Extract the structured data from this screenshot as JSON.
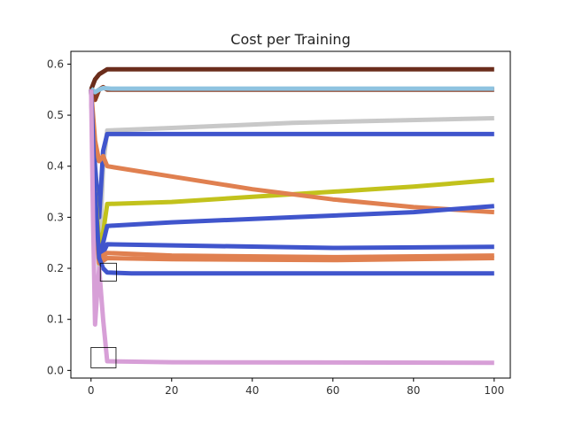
{
  "chart_data": {
    "type": "line",
    "title": "Cost per Training",
    "xlabel": "",
    "ylabel": "",
    "xlim": [
      -5,
      104
    ],
    "ylim": [
      -0.015,
      0.625
    ],
    "xticks": [
      0,
      20,
      40,
      60,
      80,
      100
    ],
    "yticks": [
      0.0,
      0.1,
      0.2,
      0.3,
      0.4,
      0.5,
      0.6
    ],
    "xtick_labels": [
      "0",
      "20",
      "40",
      "60",
      "80",
      "100"
    ],
    "ytick_labels": [
      "0.0",
      "0.1",
      "0.2",
      "0.3",
      "0.4",
      "0.5",
      "0.6"
    ],
    "grid": false,
    "legend": "none",
    "series": [
      {
        "color": "#6b2d1c",
        "x": [
          0,
          1,
          2,
          3,
          4,
          100
        ],
        "y": [
          0.55,
          0.57,
          0.58,
          0.585,
          0.59,
          0.59
        ]
      },
      {
        "color": "#8b3a1e",
        "x": [
          0,
          1,
          2,
          3,
          4,
          100
        ],
        "y": [
          0.55,
          0.53,
          0.55,
          0.555,
          0.55,
          0.55
        ]
      },
      {
        "color": "#8ec3e0",
        "x": [
          0,
          1,
          2,
          3,
          5,
          20,
          100
        ],
        "y": [
          0.552,
          0.545,
          0.55,
          0.553,
          0.552,
          0.552,
          0.552
        ]
      },
      {
        "color": "#c8c8c8",
        "x": [
          0,
          1,
          2,
          3,
          4,
          20,
          50,
          100
        ],
        "y": [
          0.55,
          0.3,
          0.2,
          0.4,
          0.47,
          0.475,
          0.485,
          0.494
        ]
      },
      {
        "color": "#4055cc",
        "x": [
          0,
          1,
          2,
          3,
          4,
          100
        ],
        "y": [
          0.55,
          0.4,
          0.3,
          0.43,
          0.463,
          0.463
        ]
      },
      {
        "color": "#c2c21c",
        "x": [
          0,
          1,
          2,
          3,
          4,
          20,
          50,
          80,
          100
        ],
        "y": [
          0.55,
          0.35,
          0.25,
          0.27,
          0.326,
          0.33,
          0.345,
          0.36,
          0.373
        ]
      },
      {
        "color": "#e08050",
        "x": [
          0,
          1,
          2,
          3,
          4,
          20,
          40,
          60,
          80,
          100
        ],
        "y": [
          0.55,
          0.45,
          0.41,
          0.42,
          0.4,
          0.38,
          0.355,
          0.335,
          0.32,
          0.31
        ]
      },
      {
        "color": "#4055cc",
        "x": [
          0,
          1,
          2,
          3,
          4,
          20,
          50,
          80,
          100
        ],
        "y": [
          0.55,
          0.3,
          0.22,
          0.25,
          0.283,
          0.29,
          0.3,
          0.31,
          0.322
        ]
      },
      {
        "color": "#4055cc",
        "x": [
          0,
          1,
          2,
          3,
          4,
          20,
          60,
          100
        ],
        "y": [
          0.55,
          0.3,
          0.22,
          0.23,
          0.247,
          0.245,
          0.24,
          0.242
        ]
      },
      {
        "color": "#e08050",
        "x": [
          0,
          1,
          2,
          3,
          4,
          20,
          60,
          100
        ],
        "y": [
          0.55,
          0.32,
          0.22,
          0.225,
          0.23,
          0.225,
          0.222,
          0.225
        ]
      },
      {
        "color": "#e08050",
        "x": [
          0,
          1,
          2,
          3,
          4,
          20,
          60,
          100
        ],
        "y": [
          0.55,
          0.3,
          0.21,
          0.215,
          0.22,
          0.218,
          0.216,
          0.22
        ]
      },
      {
        "color": "#4055cc",
        "x": [
          0,
          1,
          2,
          3,
          4,
          10,
          50,
          100
        ],
        "y": [
          0.55,
          0.35,
          0.22,
          0.2,
          0.192,
          0.19,
          0.19,
          0.19
        ]
      },
      {
        "color": "#d79fd7",
        "x": [
          0,
          0.5,
          1,
          1.5,
          2,
          3,
          4,
          20,
          100
        ],
        "y": [
          0.55,
          0.3,
          0.09,
          0.15,
          0.2,
          0.1,
          0.018,
          0.016,
          0.015
        ]
      }
    ],
    "annotations": [
      {
        "type": "rect",
        "x0": 2.3,
        "x1": 6.3,
        "y0": 0.175,
        "y1": 0.21
      },
      {
        "type": "rect",
        "x0": 0,
        "x1": 6.2,
        "y0": 0.005,
        "y1": 0.045
      }
    ]
  }
}
